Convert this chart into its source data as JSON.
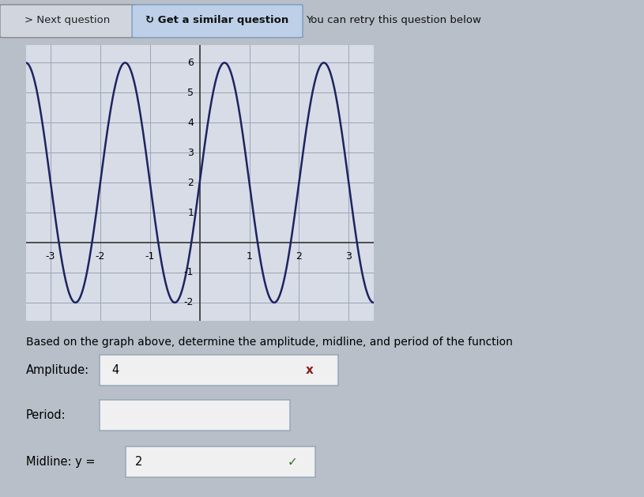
{
  "title_bar1": "> Next question",
  "title_bar2": "↻ Get a similar question",
  "title_bar3": "You can retry this question below",
  "description": "Based on the graph above, determine the amplitude, midline, and period of the function",
  "amplitude_label": "Amplitude:",
  "amplitude_value": "4",
  "period_label": "Period:",
  "period_value": "",
  "midline_label": "Midline: y = ",
  "midline_value": "2",
  "graph_xlim": [
    -3.5,
    3.5
  ],
  "graph_ylim": [
    -2.6,
    6.6
  ],
  "xticks": [
    -3,
    -2,
    -1,
    1,
    2,
    3
  ],
  "yticks": [
    -2,
    -1,
    1,
    2,
    3,
    4,
    5,
    6
  ],
  "curve_color": "#1c2461",
  "amplitude": 4,
  "midline": 2,
  "period": 2,
  "bg_color": "#b8bfc8",
  "graph_bg": "#d8dce6",
  "btn1_bg": "#c8cdd6",
  "btn1_border": "#999999",
  "btn2_bg": "#b8c8e0",
  "btn2_border": "#8899bb",
  "text_area_bg": "#c8cdd6",
  "x_mark_color": "#8b1a1a",
  "check_color": "#2e6b2e",
  "input_bg": "#f0f0f0",
  "input_border": "#9aabbb",
  "grid_color": "#9aa5b5",
  "spine_color": "#444444"
}
